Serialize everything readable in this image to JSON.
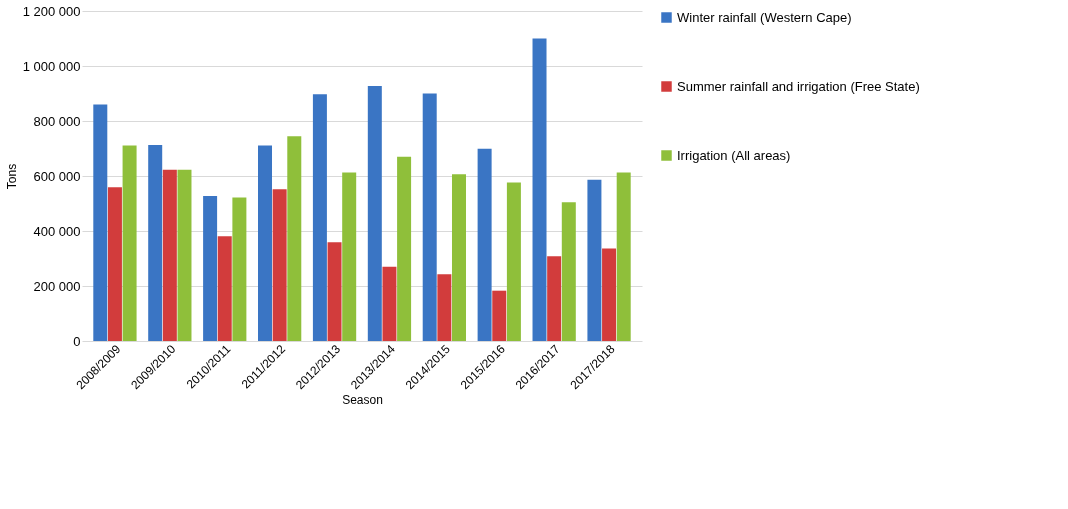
{
  "chart_data": {
    "type": "bar",
    "xlabel": "Season",
    "ylabel": "Tons",
    "categories": [
      "2008/2009",
      "2009/2010",
      "2010/2011",
      "2011/2012",
      "2012/2013",
      "2013/2014",
      "2014/2015",
      "2015/2016",
      "2016/2017",
      "2017/2018"
    ],
    "series": [
      {
        "name": "Winter rainfall (Western Cape)",
        "color": "#3a75c4",
        "values": [
          860000,
          713000,
          527000,
          711000,
          897000,
          927000,
          900000,
          699000,
          1100000,
          586000
        ]
      },
      {
        "name": "Summer rainfall and irrigation (Free State)",
        "color": "#d23c3c",
        "values": [
          559000,
          623000,
          381000,
          552000,
          359000,
          270000,
          243000,
          183000,
          308000,
          336000
        ]
      },
      {
        "name": "Irrigation (All areas)",
        "color": "#8fbf3a",
        "values": [
          711000,
          623000,
          522000,
          745000,
          613000,
          670000,
          606000,
          576000,
          505000,
          613000
        ]
      }
    ],
    "ylim": [
      0,
      1200000
    ],
    "yticks": [
      0,
      {
        "value": 200000,
        "label": "200 000"
      },
      {
        "value": 400000,
        "label": "400 000"
      },
      {
        "value": 600000,
        "label": "600 000"
      },
      {
        "value": 800000,
        "label": "800 000"
      },
      {
        "value": 1000000,
        "label": "1 000 000"
      },
      {
        "value": 1200000,
        "label": "1 200 000"
      }
    ],
    "grid": "y",
    "legend": "right"
  }
}
